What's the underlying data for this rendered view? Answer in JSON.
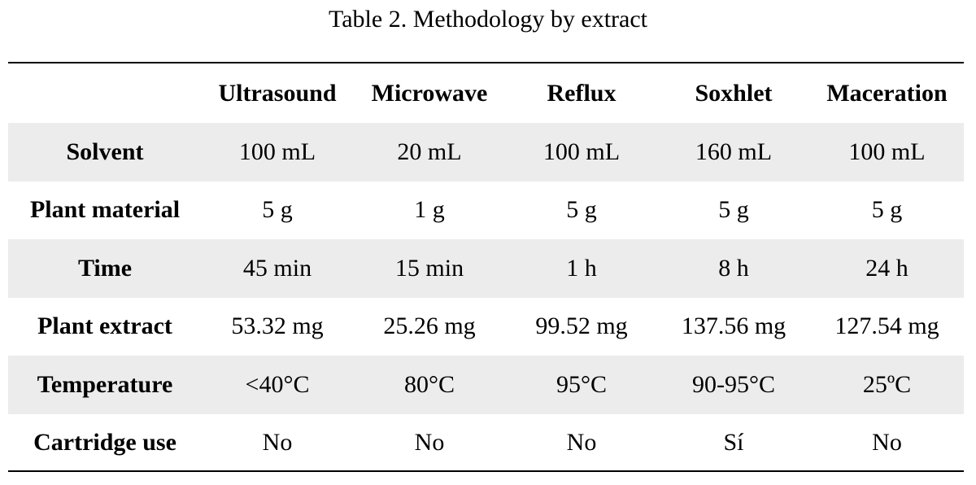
{
  "caption": "Table 2. Methodology by extract",
  "table": {
    "corner": "",
    "columns": [
      "Ultrasound",
      "Microwave",
      "Reflux",
      "Soxhlet",
      "Maceration"
    ],
    "rows": [
      {
        "label": "Solvent",
        "values": [
          "100 mL",
          "20 mL",
          "100 mL",
          "160 mL",
          "100 mL"
        ]
      },
      {
        "label": "Plant material",
        "values": [
          "5 g",
          "1 g",
          "5 g",
          "5 g",
          "5 g"
        ]
      },
      {
        "label": "Time",
        "values": [
          "45 min",
          "15 min",
          "1 h",
          "8 h",
          "24 h"
        ]
      },
      {
        "label": "Plant extract",
        "values": [
          "53.32 mg",
          "25.26 mg",
          "99.52 mg",
          "137.56 mg",
          "127.54 mg"
        ]
      },
      {
        "label": "Temperature",
        "values": [
          "<40°C",
          "80°C",
          "95°C",
          "90-95°C",
          "25ºC"
        ]
      },
      {
        "label": "Cartridge use",
        "values": [
          "No",
          "No",
          "No",
          "Sí",
          "No"
        ]
      }
    ]
  },
  "colors": {
    "shaded_row": "#ececec",
    "rule": "#000000"
  }
}
